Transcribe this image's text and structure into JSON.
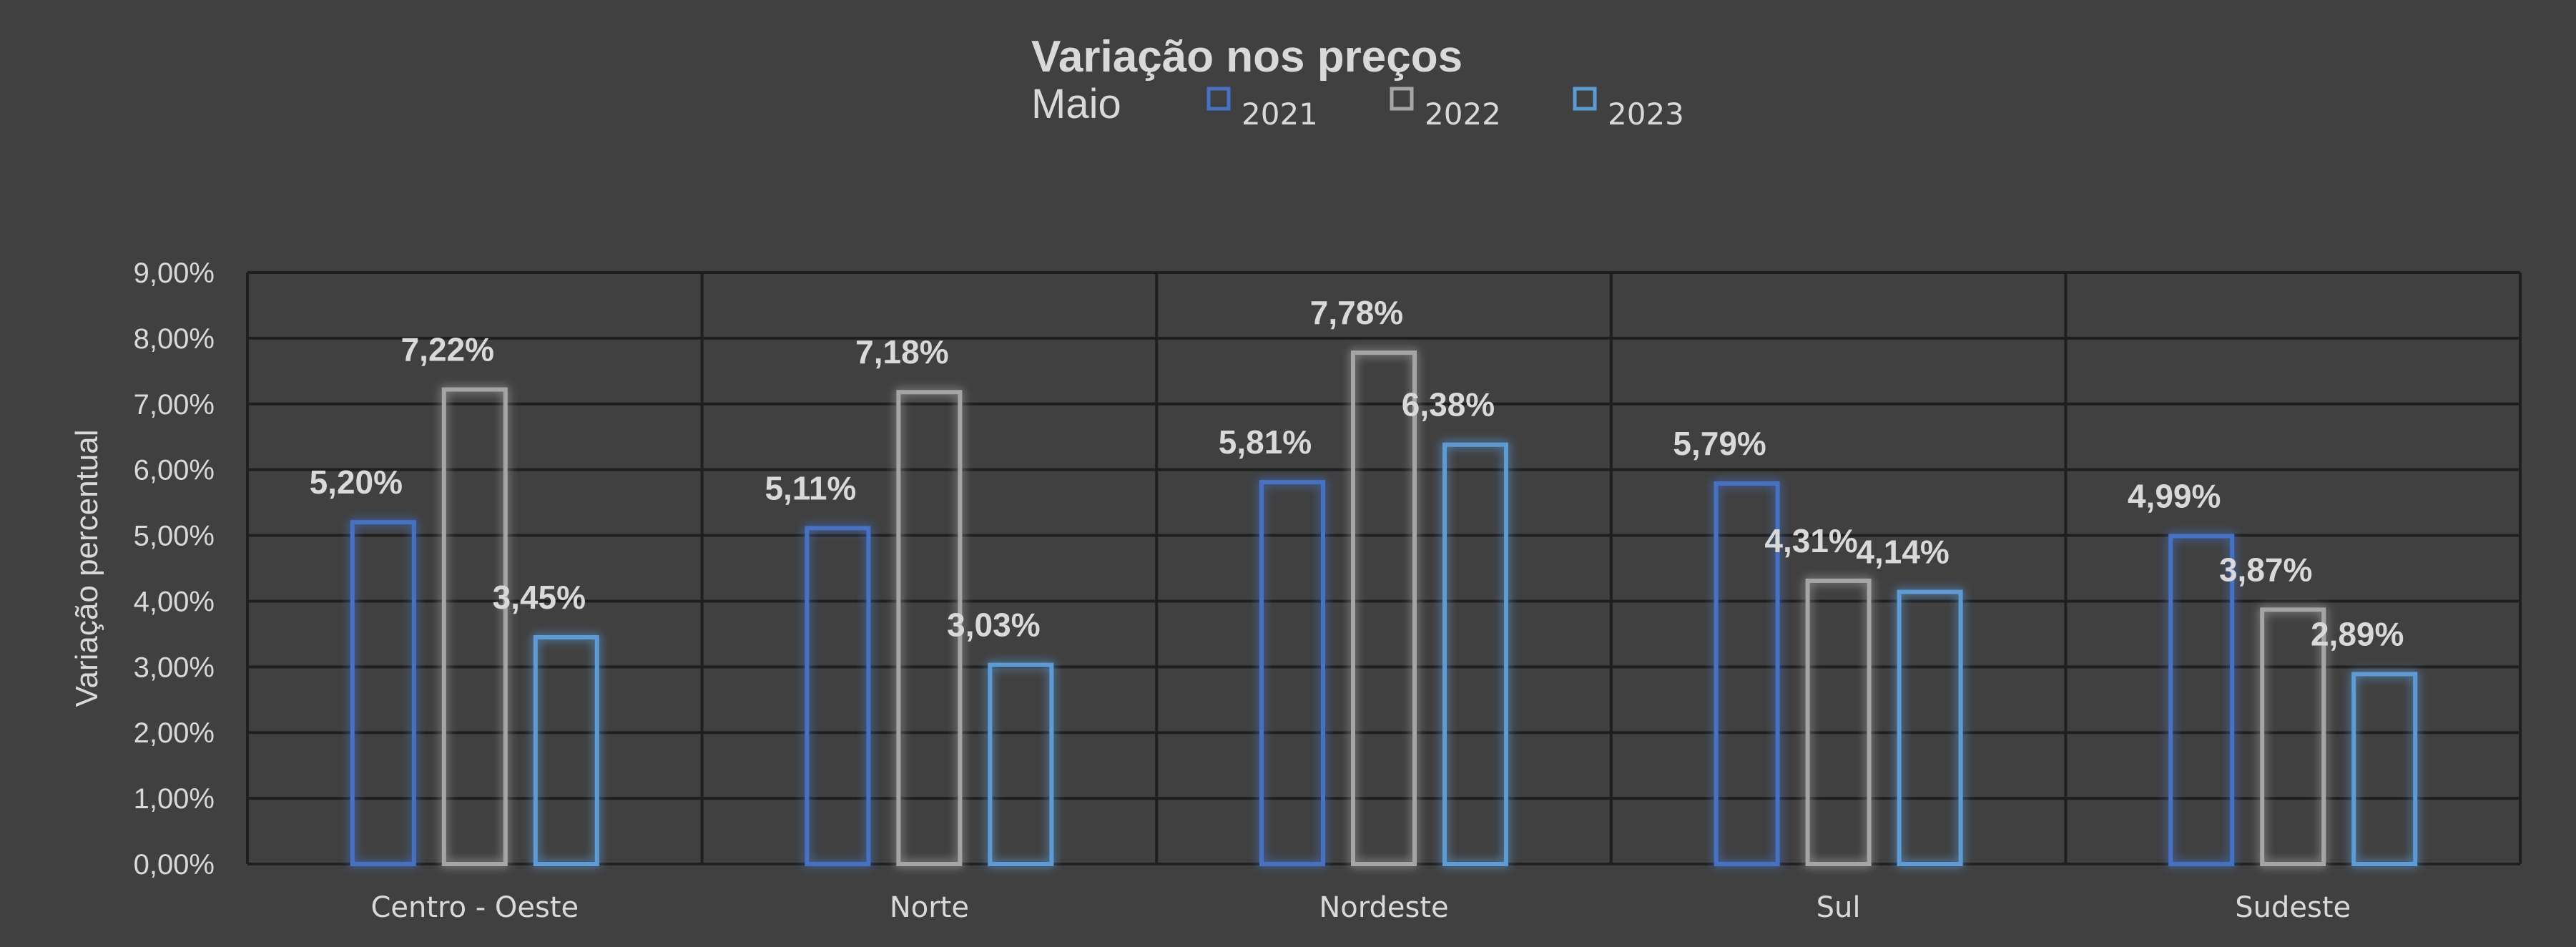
{
  "chart_data": {
    "type": "bar",
    "title": "Variação nos preços",
    "subtitle": "Maio",
    "ylabel": "Variação  percentual",
    "xlabel": "",
    "categories": [
      "Centro - Oeste",
      "Norte",
      "Nordeste",
      "Sul",
      "Sudeste"
    ],
    "series": [
      {
        "name": "2021",
        "color": "#4472c4",
        "values": [
          5.2,
          5.11,
          5.81,
          5.79,
          4.99
        ],
        "labels": [
          "5,20%",
          "5,11%",
          "5,81%",
          "5,79%",
          "4,99%"
        ]
      },
      {
        "name": "2022",
        "color": "#a5a5a5",
        "values": [
          7.22,
          7.18,
          7.78,
          4.31,
          3.87
        ],
        "labels": [
          "7,22%",
          "7,18%",
          "7,78%",
          "4,31%",
          "3,87%"
        ]
      },
      {
        "name": "2023",
        "color": "#5b9bd5",
        "values": [
          3.45,
          3.03,
          6.38,
          4.14,
          2.89
        ],
        "labels": [
          "3,45%",
          "3,03%",
          "6,38%",
          "4,14%",
          "2,89%"
        ]
      }
    ],
    "y_ticks": [
      "0,00%",
      "1,00%",
      "2,00%",
      "3,00%",
      "4,00%",
      "5,00%",
      "6,00%",
      "7,00%",
      "8,00%",
      "9,00%"
    ],
    "ylim": [
      0,
      9
    ],
    "grid": true,
    "legend_position": "top-center"
  },
  "colors": {
    "background": "#404040",
    "grid": "#1f1f1f",
    "text": "#d9d9d9"
  }
}
